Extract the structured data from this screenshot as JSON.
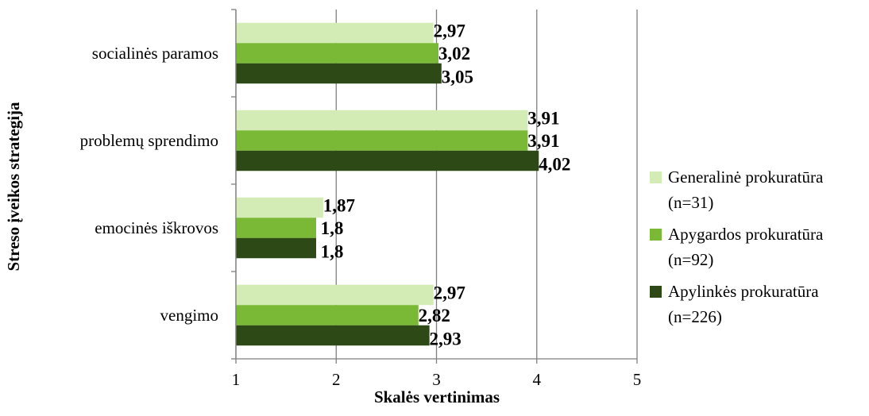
{
  "chart_data": {
    "type": "bar",
    "orientation": "horizontal",
    "categories": [
      "socialinės paramos",
      "problemų sprendimo",
      "emocinės iškrovos",
      "vengimo"
    ],
    "series": [
      {
        "name": "Generalinė prokuratūra (n=31)",
        "values": [
          2.97,
          3.91,
          1.87,
          2.97
        ],
        "labels": [
          "2,97",
          "3,91",
          "1,87",
          "2,97"
        ],
        "color": "#d3ebb4"
      },
      {
        "name": "Apygardos prokuratūra (n=92)",
        "values": [
          3.02,
          3.91,
          1.8,
          2.82
        ],
        "labels": [
          "3,02",
          "3,91",
          "1,8",
          "2,82"
        ],
        "color": "#7ab935"
      },
      {
        "name": "Apylinkės prokuratūra (n=226)",
        "values": [
          3.05,
          4.02,
          1.8,
          2.93
        ],
        "labels": [
          "3,05",
          "4,02",
          "1,8",
          "2,93"
        ],
        "color": "#2d4a16"
      }
    ],
    "xlabel": "Skalės vertinimas",
    "ylabel": "Streso įveikos strategija",
    "xlim": [
      1,
      5
    ],
    "xticks": [
      "1",
      "2",
      "3",
      "4",
      "5"
    ],
    "grid": "vertical",
    "legend": "right"
  },
  "legend_items": [
    {
      "line1": "Generalinė prokuratūra",
      "line2": "(n=31)"
    },
    {
      "line1": "Apygardos prokuratūra",
      "line2": "(n=92)"
    },
    {
      "line1": "Apylinkės prokuratūra",
      "line2": "(n=226)"
    }
  ]
}
